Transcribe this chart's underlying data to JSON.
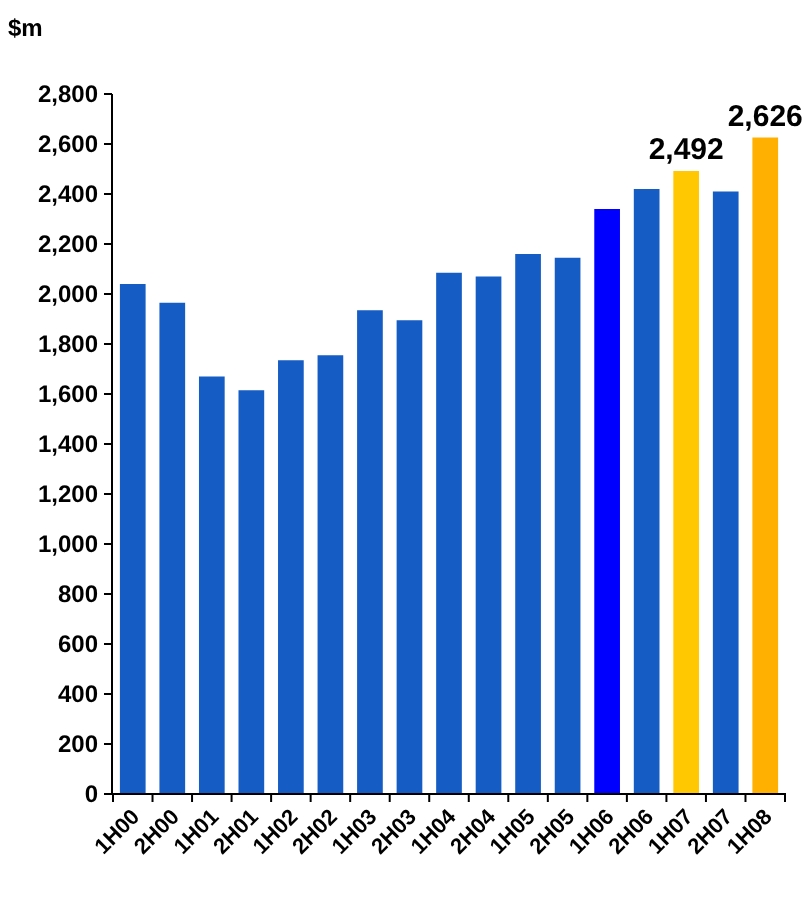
{
  "chart_data": {
    "type": "bar",
    "title": "$m",
    "categories": [
      "1H00",
      "2H00",
      "1H01",
      "2H01",
      "1H02",
      "2H02",
      "1H03",
      "2H03",
      "1H04",
      "2H04",
      "1H05",
      "2H05",
      "1H06",
      "2H06",
      "1H07",
      "2H07",
      "1H08"
    ],
    "values": [
      2040,
      1965,
      1670,
      1615,
      1735,
      1755,
      1935,
      1895,
      2085,
      2070,
      2160,
      2145,
      2340,
      2420,
      2492,
      2410,
      2626
    ],
    "colors": [
      "#155cc4",
      "#155cc4",
      "#155cc4",
      "#155cc4",
      "#155cc4",
      "#155cc4",
      "#155cc4",
      "#155cc4",
      "#155cc4",
      "#155cc4",
      "#155cc4",
      "#155cc4",
      "#0000ff",
      "#155cc4",
      "#ffc800",
      "#155cc4",
      "#ffb000"
    ],
    "value_labels": [
      null,
      null,
      null,
      null,
      null,
      null,
      null,
      null,
      null,
      null,
      null,
      null,
      null,
      null,
      "2,492",
      null,
      "2,626"
    ],
    "ylim": [
      0,
      2800
    ],
    "yticks": [
      {
        "value": 0,
        "label": "0"
      },
      {
        "value": 200,
        "label": "200"
      },
      {
        "value": 400,
        "label": "400"
      },
      {
        "value": 600,
        "label": "600"
      },
      {
        "value": 800,
        "label": "800"
      },
      {
        "value": 1000,
        "label": "1,000"
      },
      {
        "value": 1200,
        "label": "1,200"
      },
      {
        "value": 1400,
        "label": "1,400"
      },
      {
        "value": 1600,
        "label": "1,600"
      },
      {
        "value": 1800,
        "label": "1,800"
      },
      {
        "value": 2000,
        "label": "2,000"
      },
      {
        "value": 2200,
        "label": "2,200"
      },
      {
        "value": 2400,
        "label": "2,400"
      },
      {
        "value": 2600,
        "label": "2,600"
      },
      {
        "value": 2800,
        "label": "2,800"
      }
    ]
  }
}
